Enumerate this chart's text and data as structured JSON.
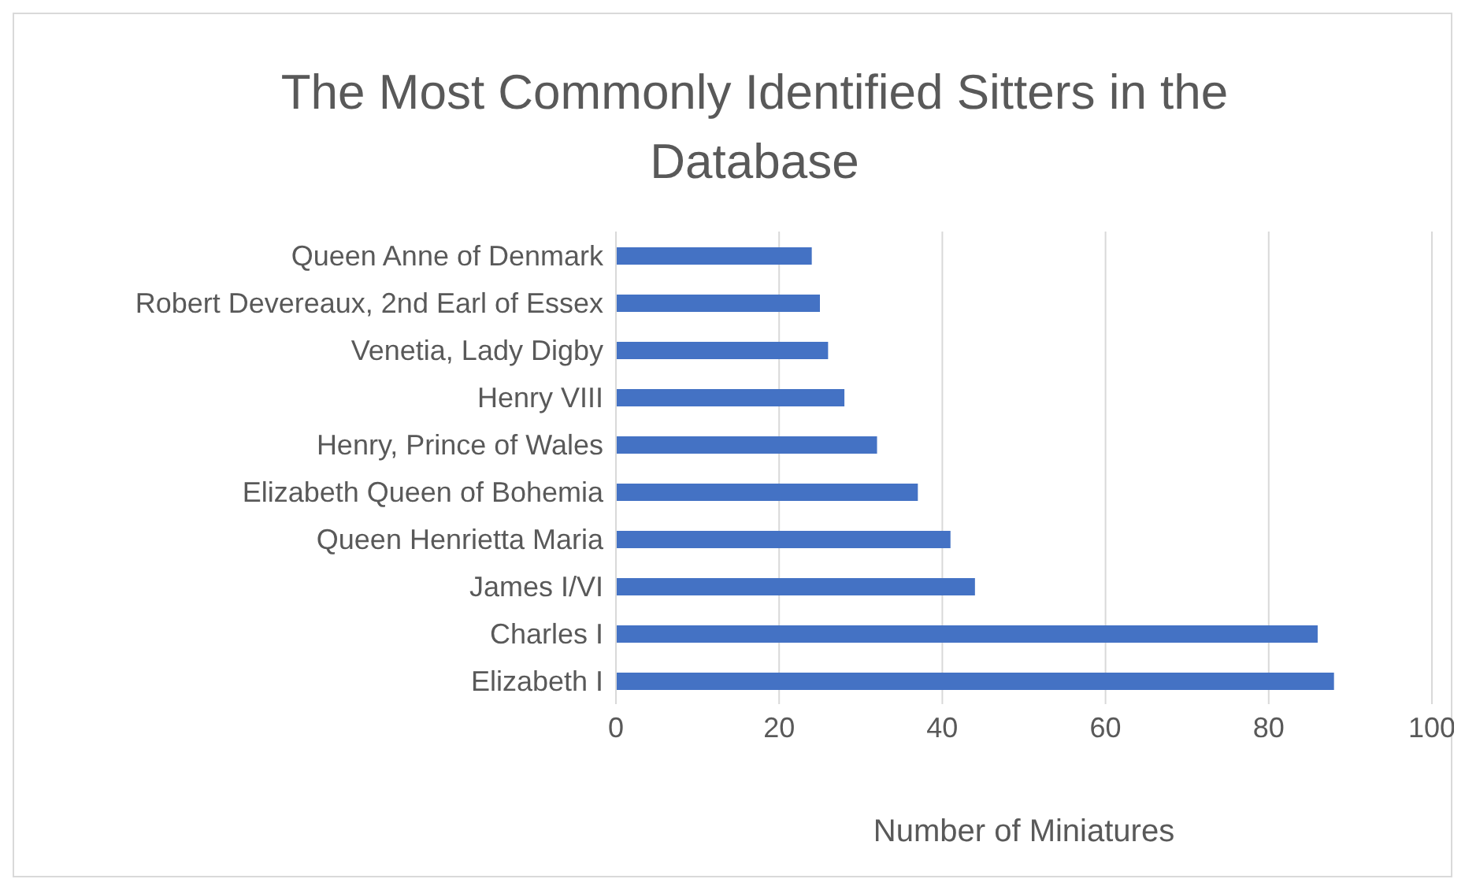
{
  "chart_data": {
    "type": "bar",
    "orientation": "horizontal",
    "title": "The Most Commonly Identified Sitters in the Database",
    "xlabel": "Number of Miniatures",
    "categories": [
      "Queen Anne of Denmark",
      "Robert Devereaux, 2nd Earl of Essex",
      "Venetia, Lady Digby",
      "Henry VIII",
      "Henry, Prince of Wales",
      "Elizabeth Queen of Bohemia",
      "Queen Henrietta Maria",
      "James I/VI",
      "Charles I",
      "Elizabeth I"
    ],
    "values": [
      24,
      25,
      26,
      28,
      32,
      37,
      41,
      44,
      86,
      88
    ],
    "color": "#4472c4",
    "xlim": [
      0,
      100
    ],
    "xticks": [
      0,
      20,
      40,
      60,
      80,
      100
    ],
    "grid": "x"
  }
}
